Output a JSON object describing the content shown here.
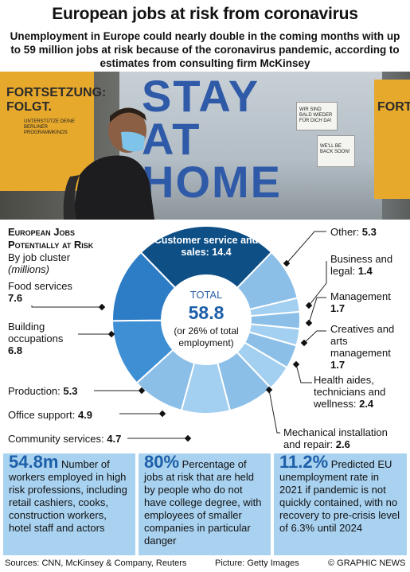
{
  "header": {
    "title": "European jobs at risk from coronavirus",
    "subtitle": "Unemployment in Europe could nearly double in the coming months with up to 59 million jobs at risk because of the coronavirus pandemic, according to estimates from consulting firm McKinsey"
  },
  "photo": {
    "poster_left_text": "FORTSETZUNG: FOLGT.",
    "poster_left_small": "UNTERSTÜTZE DEINE BERLINER PROGRAMMKINOS",
    "poster_right_text": "FORT",
    "window_text": "STAY AT HOME",
    "notice_1": "WIR SIND BALD WIEDER FÜR DICH DA!",
    "notice_2": "WE'LL BE BACK SOON!"
  },
  "chart_heading": {
    "line1": "European Jobs",
    "line2": "Potentially at Risk",
    "units1": "By job cluster",
    "units2": "(millions)"
  },
  "center": {
    "total_label": "TOTAL",
    "total_value": "58.8",
    "note": "(or 26% of total employment)"
  },
  "chart_data": {
    "type": "pie",
    "donut": true,
    "title": "European Jobs Potentially at Risk",
    "subtitle": "By job cluster (millions)",
    "total": 58.8,
    "categories": [
      "Customer service and sales",
      "Other",
      "Business and legal",
      "Management",
      "Creatives and arts management",
      "Health aides, technicians and wellness",
      "Mechanical installation and repair",
      "Community services",
      "Office support",
      "Production",
      "Building occupations",
      "Food services"
    ],
    "values": [
      14.4,
      5.3,
      1.4,
      1.7,
      1.7,
      2.4,
      2.6,
      4.7,
      4.9,
      5.3,
      6.8,
      7.6
    ],
    "colors": [
      "#0e4f86",
      "#8cbfe8",
      "#a3cff0",
      "#8cbfe8",
      "#a3cff0",
      "#8cbfe8",
      "#a3cff0",
      "#8cbfe8",
      "#a3cff0",
      "#8cbfe8",
      "#3f8fd4",
      "#2d7cc6"
    ]
  },
  "labels": {
    "top": "Customer service and sales: 14.4",
    "other_name": "Other:",
    "other_val": "5.3",
    "business_name": "Business and legal:",
    "business_val": "1.4",
    "management_name": "Management",
    "management_val": "1.7",
    "creatives_name": "Creatives and arts management",
    "creatives_val": "1.7",
    "health_name": "Health aides, technicians and wellness:",
    "health_val": "2.4",
    "mechanical_name": "Mechanical installation and repair:",
    "mechanical_val": "2.6",
    "community_name": "Community services:",
    "community_val": "4.7",
    "office_name": "Office support:",
    "office_val": "4.9",
    "production_name": "Production:",
    "production_val": "5.3",
    "building_name": "Building occupations",
    "building_val": "6.8",
    "food_name": "Food services",
    "food_val": "7.6"
  },
  "stats": [
    {
      "big": "54.8m",
      "text": "Number of workers employed in high risk professions, including retail cashiers, cooks, construction workers, hotel staff and actors"
    },
    {
      "big": "80%",
      "text": "Percentage of jobs at risk that are held by people who do not have college degree, with employees of smaller companies in particular danger"
    },
    {
      "big": "11.2%",
      "text": "Predicted EU unemployment rate in 2021 if pandemic is not quickly contained, with no recovery to pre-crisis level of 6.3% until 2024"
    }
  ],
  "footer": {
    "sources": "Sources: CNN, McKinsey & Company, Reuters",
    "picture": "Picture: Getty Images",
    "credit": "© GRAPHIC NEWS"
  },
  "watermark": "GRAPHIC NEWS"
}
